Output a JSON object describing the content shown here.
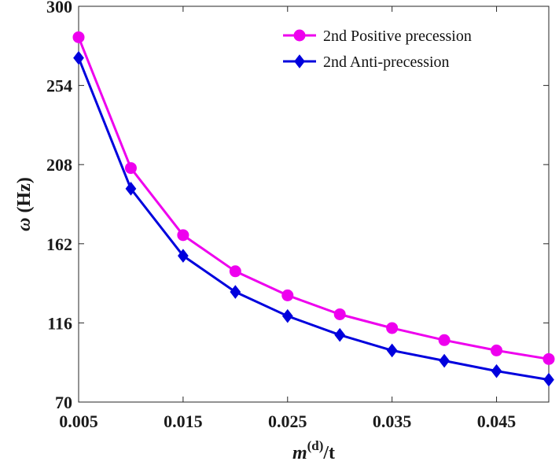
{
  "chart_data": {
    "type": "line",
    "title": "",
    "xlabel_main": "m",
    "xlabel_sup": "(d)",
    "xlabel_tail": "/t",
    "ylabel_symbol": "ω",
    "ylabel_unit": "(Hz)",
    "x": [
      0.005,
      0.01,
      0.015,
      0.02,
      0.025,
      0.03,
      0.035,
      0.04,
      0.045,
      0.05
    ],
    "xlim": [
      0.005,
      0.05
    ],
    "ylim": [
      70,
      300
    ],
    "xticks": [
      0.005,
      0.015,
      0.025,
      0.035,
      0.045
    ],
    "xtick_labels": [
      "0.005",
      "0.015",
      "0.025",
      "0.035",
      "0.045"
    ],
    "yticks": [
      70,
      116,
      162,
      208,
      254,
      300
    ],
    "ytick_labels": [
      "70",
      "116",
      "162",
      "208",
      "254",
      "300"
    ],
    "grid": false,
    "legend_position": "top-right",
    "series": [
      {
        "name": "2nd Positive precession",
        "color": "#ee00ee",
        "marker": "circle",
        "values": [
          282,
          206,
          167,
          146,
          132,
          121,
          113,
          106,
          100,
          95
        ]
      },
      {
        "name": "2nd Anti-precession",
        "color": "#0000dd",
        "marker": "diamond",
        "values": [
          270,
          194,
          155,
          134,
          120,
          109,
          100,
          94,
          88,
          83
        ]
      }
    ]
  }
}
